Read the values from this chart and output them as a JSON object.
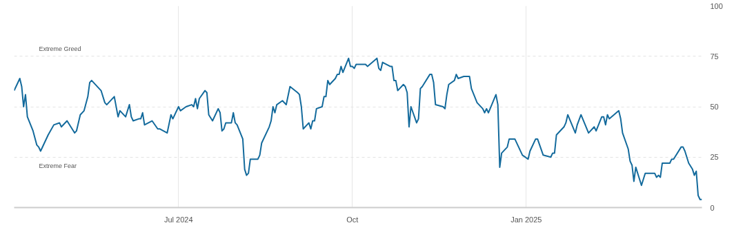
{
  "chart_data": {
    "type": "line",
    "xlim": [
      "2024-04-05",
      "2025-04-04"
    ],
    "ylim": [
      0,
      100
    ],
    "yticks": [
      0,
      25,
      50,
      75,
      100
    ],
    "xticks": [
      {
        "value": "2024-07-01",
        "label": "Jul 2024"
      },
      {
        "value": "2024-10-01",
        "label": "Oct"
      },
      {
        "value": "2025-01-01",
        "label": "Jan 2025"
      }
    ],
    "grid": true,
    "marker": "none",
    "line_style": "solid",
    "annotations": [
      "Extreme Greed",
      "Extreme Fear"
    ],
    "x": [
      "2024-04-05",
      "2024-04-08",
      "2024-04-09",
      "2024-04-10",
      "2024-04-11",
      "2024-04-12",
      "2024-04-15",
      "2024-04-17",
      "2024-04-18",
      "2024-04-19",
      "2024-04-23",
      "2024-04-26",
      "2024-04-29",
      "2024-04-30",
      "2024-05-03",
      "2024-05-07",
      "2024-05-08",
      "2024-05-10",
      "2024-05-12",
      "2024-05-14",
      "2024-05-15",
      "2024-05-16",
      "2024-05-21",
      "2024-05-23",
      "2024-05-24",
      "2024-05-28",
      "2024-05-30",
      "2024-05-31",
      "2024-06-03",
      "2024-06-05",
      "2024-06-06",
      "2024-06-07",
      "2024-06-10",
      "2024-06-11",
      "2024-06-12",
      "2024-06-13",
      "2024-06-17",
      "2024-06-20",
      "2024-06-21",
      "2024-06-25",
      "2024-06-27",
      "2024-06-28",
      "2024-07-01",
      "2024-07-02",
      "2024-07-05",
      "2024-07-08",
      "2024-07-09",
      "2024-07-10",
      "2024-07-11",
      "2024-07-12",
      "2024-07-15",
      "2024-07-16",
      "2024-07-17",
      "2024-07-19",
      "2024-07-22",
      "2024-07-23",
      "2024-07-24",
      "2024-07-25",
      "2024-07-26",
      "2024-07-29",
      "2024-07-30",
      "2024-07-31",
      "2024-08-01",
      "2024-08-04",
      "2024-08-05",
      "2024-08-06",
      "2024-08-07",
      "2024-08-08",
      "2024-08-12",
      "2024-08-13",
      "2024-08-14",
      "2024-08-18",
      "2024-08-19",
      "2024-08-20",
      "2024-08-21",
      "2024-08-22",
      "2024-08-25",
      "2024-08-27",
      "2024-08-29",
      "2024-09-02",
      "2024-09-03",
      "2024-09-04",
      "2024-09-05",
      "2024-09-08",
      "2024-09-09",
      "2024-09-10",
      "2024-09-11",
      "2024-09-12",
      "2024-09-15",
      "2024-09-16",
      "2024-09-17",
      "2024-09-18",
      "2024-09-19",
      "2024-09-22",
      "2024-09-23",
      "2024-09-24",
      "2024-09-25",
      "2024-09-26",
      "2024-09-29",
      "2024-09-30",
      "2024-10-01",
      "2024-10-02",
      "2024-10-03",
      "2024-10-07",
      "2024-10-08",
      "2024-10-09",
      "2024-10-14",
      "2024-10-15",
      "2024-10-16",
      "2024-10-17",
      "2024-10-21",
      "2024-10-22",
      "2024-10-23",
      "2024-10-24",
      "2024-10-25",
      "2024-10-28",
      "2024-10-29",
      "2024-10-30",
      "2024-10-31",
      "2024-11-01",
      "2024-11-04",
      "2024-11-05",
      "2024-11-06",
      "2024-11-07",
      "2024-11-11",
      "2024-11-12",
      "2024-11-13",
      "2024-11-14",
      "2024-11-18",
      "2024-11-19",
      "2024-11-20",
      "2024-11-21",
      "2024-11-24",
      "2024-11-25",
      "2024-11-26",
      "2024-11-29",
      "2024-12-02",
      "2024-12-03",
      "2024-12-06",
      "2024-12-09",
      "2024-12-10",
      "2024-12-11",
      "2024-12-12",
      "2024-12-16",
      "2024-12-17",
      "2024-12-18",
      "2024-12-19",
      "2024-12-22",
      "2024-12-23",
      "2024-12-26",
      "2024-12-30",
      "2025-01-02",
      "2025-01-03",
      "2025-01-06",
      "2025-01-07",
      "2025-01-10",
      "2025-01-14",
      "2025-01-15",
      "2025-01-16",
      "2025-01-17",
      "2025-01-21",
      "2025-01-22",
      "2025-01-23",
      "2025-01-27",
      "2025-01-28",
      "2025-01-30",
      "2025-02-03",
      "2025-02-06",
      "2025-02-07",
      "2025-02-10",
      "2025-02-11",
      "2025-02-12",
      "2025-02-13",
      "2025-02-14",
      "2025-02-19",
      "2025-02-20",
      "2025-02-21",
      "2025-02-24",
      "2025-02-25",
      "2025-02-26",
      "2025-02-27",
      "2025-02-28",
      "2025-03-03",
      "2025-03-05",
      "2025-03-10",
      "2025-03-11",
      "2025-03-12",
      "2025-03-13",
      "2025-03-14",
      "2025-03-17",
      "2025-03-18",
      "2025-03-19",
      "2025-03-20",
      "2025-03-24",
      "2025-03-25",
      "2025-03-26",
      "2025-03-28",
      "2025-03-30",
      "2025-03-31",
      "2025-04-01",
      "2025-04-02",
      "2025-04-03",
      "2025-04-04"
    ],
    "series": [
      {
        "color": "#136a9c",
        "values": [
          58,
          64,
          60,
          50,
          56,
          45,
          38,
          31,
          30,
          28,
          36,
          41,
          42,
          40,
          43,
          37,
          38,
          46,
          48,
          55,
          62,
          63,
          58,
          52,
          51,
          55,
          45,
          48,
          45,
          51,
          45,
          43,
          44,
          44,
          47,
          41,
          43,
          39,
          39,
          37,
          46,
          44,
          50,
          48,
          50,
          51,
          50,
          54,
          49,
          54,
          58,
          57,
          46,
          43,
          49,
          47,
          38,
          39,
          42,
          42,
          47,
          42,
          41,
          34,
          19,
          16,
          17,
          24,
          24,
          26,
          32,
          40,
          43,
          50,
          47,
          51,
          53,
          51,
          60,
          57,
          56,
          50,
          39,
          42,
          39,
          43,
          43,
          49,
          50,
          55,
          55,
          63,
          61,
          64,
          66,
          66,
          70,
          67,
          74,
          70,
          70,
          69,
          71,
          71,
          71,
          70,
          74,
          69,
          68,
          72,
          70,
          70,
          63,
          63,
          58,
          61,
          60,
          57,
          40,
          50,
          42,
          44,
          59,
          60,
          66,
          66,
          62,
          51,
          50,
          49,
          56,
          61,
          63,
          66,
          64,
          65,
          65,
          59,
          52,
          49,
          47,
          49,
          47,
          56,
          51,
          20,
          27,
          30,
          34,
          34,
          26,
          24,
          28,
          34,
          34,
          26,
          25,
          27,
          27,
          36,
          40,
          42,
          46,
          37,
          41,
          46,
          37,
          40,
          38,
          45,
          45,
          41,
          46,
          44,
          48,
          44,
          37,
          29,
          23,
          21,
          13,
          20,
          11,
          17,
          17,
          15,
          16,
          15,
          22,
          22,
          22,
          24,
          24,
          30,
          30,
          28,
          22,
          19,
          16,
          18,
          6,
          4,
          4
        ]
      }
    ]
  }
}
